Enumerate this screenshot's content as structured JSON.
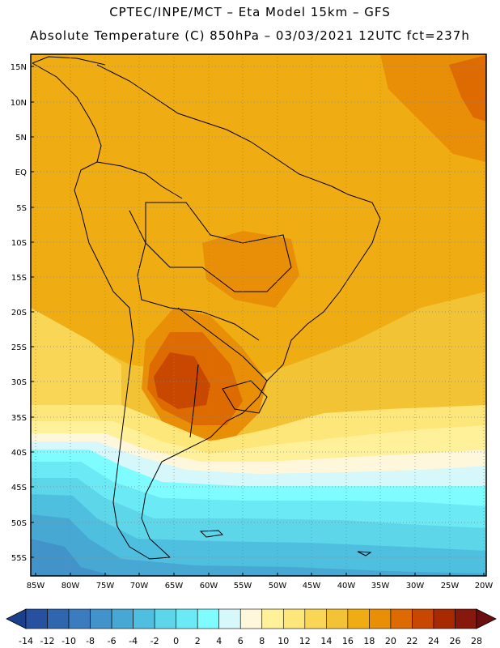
{
  "header": {
    "line1": "CPTEC/INPE/MCT –  Eta Model 15km – GFS",
    "line2": "Absolute Temperature (C) 850hPa – 03/03/2021 12UTC fct=237h"
  },
  "latitude_labels": [
    "15N",
    "10N",
    "5N",
    "EQ",
    "5S",
    "10S",
    "15S",
    "20S",
    "25S",
    "30S",
    "35S",
    "40S",
    "45S",
    "50S",
    "55S"
  ],
  "longitude_labels": [
    "85W",
    "80W",
    "75W",
    "70W",
    "65W",
    "60W",
    "55W",
    "50W",
    "45W",
    "40W",
    "35W",
    "30W",
    "25W",
    "20W"
  ],
  "colorbar": {
    "labels": [
      "-14",
      "-12",
      "-10",
      "-8",
      "-6",
      "-4",
      "-2",
      "0",
      "2",
      "4",
      "6",
      "8",
      "10",
      "12",
      "14",
      "16",
      "18",
      "20",
      "22",
      "24",
      "26",
      "28"
    ],
    "colors": [
      "#1c3f8c",
      "#25519f",
      "#2f66ae",
      "#3a7cbe",
      "#4193c9",
      "#47a9d3",
      "#4fbfe0",
      "#5dd6ea",
      "#6be9f5",
      "#7ffcff",
      "#d7f8fb",
      "#fff7dc",
      "#fff19a",
      "#fde67a",
      "#f9d655",
      "#f2c335",
      "#efac13",
      "#e88f07",
      "#de6b02",
      "#c84701",
      "#a82a00",
      "#87190c",
      "#6b0e10"
    ],
    "levels": [
      -14,
      -12,
      -10,
      -8,
      -6,
      -4,
      -2,
      0,
      2,
      4,
      6,
      8,
      10,
      12,
      14,
      16,
      18,
      20,
      22,
      24,
      26,
      28
    ]
  }
}
